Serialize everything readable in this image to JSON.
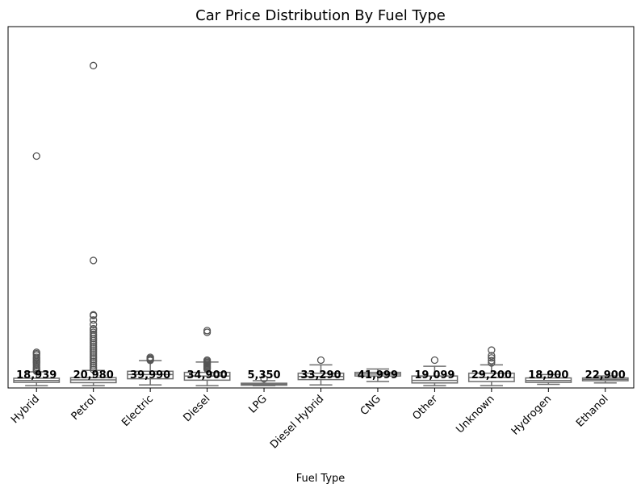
{
  "chart_data": {
    "type": "boxplot",
    "title": "Car Price Distribution By Fuel Type",
    "xlabel": "Fuel Type",
    "ylabel": "",
    "ylim": [
      -8000,
      1290000
    ],
    "grid": false,
    "legend": "none",
    "categories": [
      "Hybrid",
      "Petrol",
      "Electric",
      "Diesel",
      "LPG",
      "Diesel Hybrid",
      "CNG",
      "Other",
      "Unknown",
      "Hydrogen",
      "Ethanol"
    ],
    "medians": [
      18939,
      20980,
      39990,
      34900,
      5350,
      33290,
      41999,
      19099,
      29200,
      18900,
      22900
    ],
    "median_labels": [
      "18,939",
      "20,980",
      "39,990",
      "34,900",
      "5,350",
      "33,290",
      "41,999",
      "19,099",
      "29,200",
      "18,900",
      "22,900"
    ],
    "boxes": [
      {
        "q1": 12000,
        "q3": 27000,
        "whisker_low": 500,
        "whisker_high": 50000,
        "outliers": [
          825000,
          120000,
          115000,
          110000,
          102000,
          98000,
          92000,
          87000,
          83000,
          78000,
          72000,
          66000,
          60000,
          56000,
          52000
        ]
      },
      {
        "q1": 11000,
        "q3": 29000,
        "whisker_low": 500,
        "whisker_high": 55000,
        "outliers": [
          1150000,
          450000,
          255000,
          252000,
          236000,
          220000,
          205000,
          200000,
          192000,
          185000,
          178000,
          170000,
          163000,
          156000,
          149000,
          142000,
          135000,
          128000,
          121000,
          114000,
          107000,
          100000,
          93000,
          86000,
          79000,
          72000,
          65000,
          58000
        ]
      },
      {
        "q1": 25000,
        "q3": 52000,
        "whisker_low": 3000,
        "whisker_high": 90000,
        "outliers": [
          102000,
          98000,
          94000,
          91000
        ]
      },
      {
        "q1": 20000,
        "q3": 48000,
        "whisker_low": 500,
        "whisker_high": 85000,
        "outliers": [
          198000,
          192000,
          92000,
          88000,
          84000,
          80000,
          76000,
          72000,
          68000,
          64000,
          60000
        ]
      },
      {
        "q1": 2000,
        "q3": 9000,
        "whisker_low": 500,
        "whisker_high": 18000,
        "outliers": [
          25000
        ]
      },
      {
        "q1": 22000,
        "q3": 45000,
        "whisker_low": 3000,
        "whisker_high": 75000,
        "outliers": [
          92000
        ]
      },
      {
        "q1": 35000,
        "q3": 48000,
        "whisker_low": 15000,
        "whisker_high": 60000,
        "outliers": []
      },
      {
        "q1": 10000,
        "q3": 35000,
        "whisker_low": 500,
        "whisker_high": 70000,
        "outliers": [
          92000
        ]
      },
      {
        "q1": 15000,
        "q3": 45000,
        "whisker_low": 500,
        "whisker_high": 75000,
        "outliers": [
          128000,
          108000,
          100000,
          90000,
          82000
        ]
      },
      {
        "q1": 12000,
        "q3": 28000,
        "whisker_low": 5000,
        "whisker_high": 40000,
        "outliers": []
      },
      {
        "q1": 18000,
        "q3": 28000,
        "whisker_low": 10000,
        "whisker_high": 35000,
        "outliers": []
      }
    ],
    "box_color": "#6e6e6e",
    "box_fill": "#ffffff",
    "outlier_color": "#555555"
  }
}
